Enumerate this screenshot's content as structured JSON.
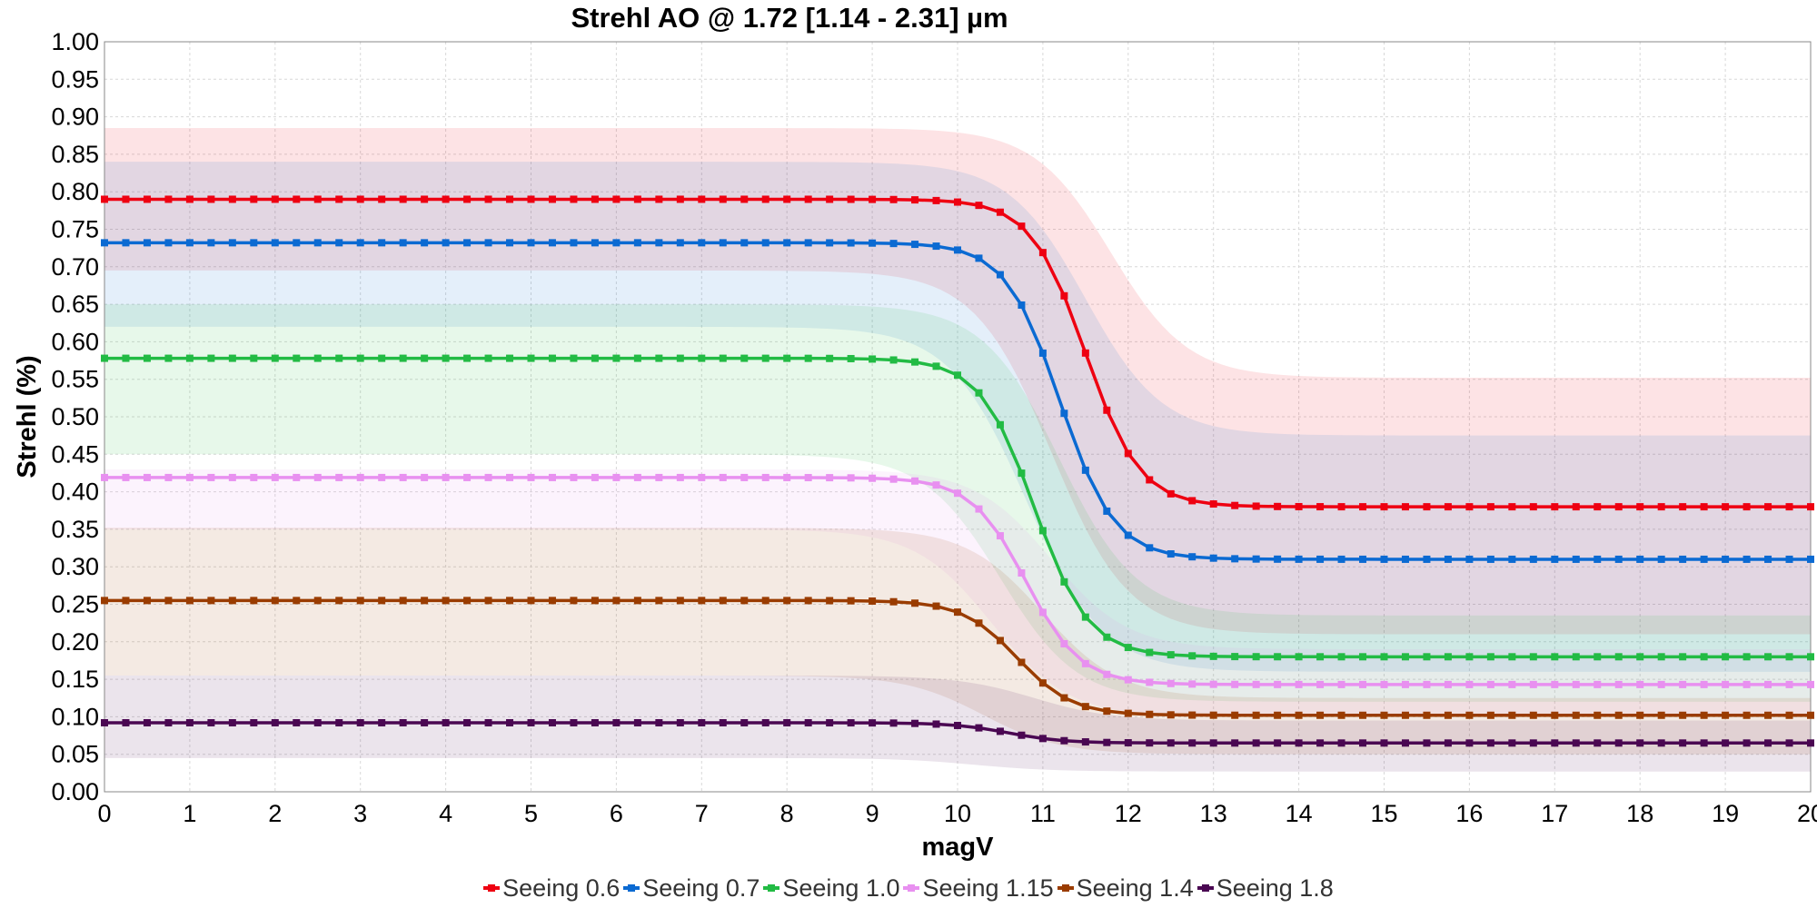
{
  "chart_data": {
    "type": "line",
    "title": "Strehl AO @ 1.72 [1.14 - 2.31] µm",
    "xlabel": "magV",
    "ylabel": "Strehl (%)",
    "xlim": [
      0,
      20
    ],
    "ylim": [
      0,
      1
    ],
    "xticks": [
      "0",
      "1",
      "2",
      "3",
      "4",
      "5",
      "6",
      "7",
      "8",
      "9",
      "10",
      "11",
      "12",
      "13",
      "14",
      "15",
      "16",
      "17",
      "18",
      "19",
      "20"
    ],
    "yticks": [
      "0.00",
      "0.05",
      "0.10",
      "0.15",
      "0.20",
      "0.25",
      "0.30",
      "0.35",
      "0.40",
      "0.45",
      "0.50",
      "0.55",
      "0.60",
      "0.65",
      "0.70",
      "0.75",
      "0.80",
      "0.85",
      "0.90",
      "0.95",
      "1.00"
    ],
    "grid": true,
    "legend_position": "bottom",
    "series": [
      {
        "name": "Seeing 0.6",
        "color": "#ee0011",
        "bright_value": 0.79,
        "faint_value": 0.38,
        "transition_mag": 11.5,
        "band_upper": [
          0.885,
          0.552
        ],
        "band_lower": [
          0.695,
          0.21
        ]
      },
      {
        "name": "Seeing 0.7",
        "color": "#0b6ad2",
        "bright_value": 0.732,
        "faint_value": 0.31,
        "transition_mag": 11.2,
        "band_upper": [
          0.84,
          0.475
        ],
        "band_lower": [
          0.62,
          0.16
        ]
      },
      {
        "name": "Seeing 1.0",
        "color": "#22bb44",
        "bright_value": 0.578,
        "faint_value": 0.18,
        "transition_mag": 10.9,
        "band_upper": [
          0.65,
          0.235
        ],
        "band_lower": [
          0.45,
          0.12
        ]
      },
      {
        "name": "Seeing 1.15",
        "color": "#e890f0",
        "bright_value": 0.419,
        "faint_value": 0.143,
        "transition_mag": 10.8,
        "band_upper": [
          0.43,
          0.19
        ],
        "band_lower": [
          0.35,
          0.1
        ]
      },
      {
        "name": "Seeing 1.4",
        "color": "#9a3c00",
        "bright_value": 0.255,
        "faint_value": 0.102,
        "transition_mag": 10.7,
        "band_upper": [
          0.352,
          0.125
        ],
        "band_lower": [
          0.155,
          0.05
        ]
      },
      {
        "name": "Seeing 1.8",
        "color": "#4a0752",
        "bright_value": 0.092,
        "faint_value": 0.065,
        "transition_mag": 10.6,
        "band_upper": [
          0.155,
          0.095
        ],
        "band_lower": [
          0.045,
          0.027
        ]
      }
    ]
  }
}
